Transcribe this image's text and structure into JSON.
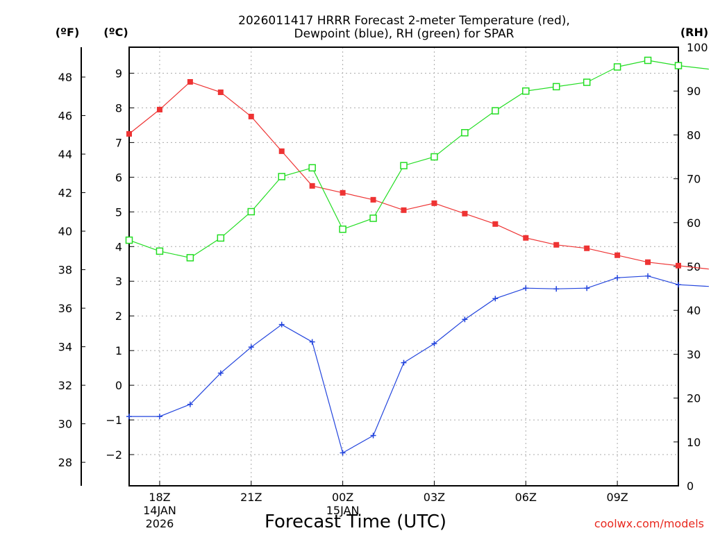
{
  "chart_data": {
    "type": "line",
    "title_line1": "2026011417 HRRR Forecast 2-meter Temperature (red),",
    "title_line2": "Dewpoint (blue), RH (green) for SPAR",
    "xlabel": "Forecast Time (UTC)",
    "credit": "coolwx.com/models",
    "units": {
      "f": "(ºF)",
      "c": "(ºC)",
      "rh": "(RH)"
    },
    "x_hours": [
      17,
      18,
      19,
      20,
      21,
      22,
      23,
      24,
      25,
      26,
      27,
      28,
      29,
      30,
      31,
      32,
      33,
      34,
      35,
      36
    ],
    "x_ticks": [
      {
        "hour": 18,
        "label": "18Z",
        "date": "14JAN",
        "year": "2026"
      },
      {
        "hour": 21,
        "label": "21Z",
        "date": "",
        "year": ""
      },
      {
        "hour": 24,
        "label": "00Z",
        "date": "15JAN",
        "year": ""
      },
      {
        "hour": 27,
        "label": "03Z",
        "date": "",
        "year": ""
      },
      {
        "hour": 30,
        "label": "06Z",
        "date": "",
        "year": ""
      },
      {
        "hour": 33,
        "label": "09Z",
        "date": "",
        "year": ""
      }
    ],
    "x_range": [
      17,
      35
    ],
    "y_celsius_range": [
      -2.9,
      9.75
    ],
    "y_celsius_ticks": [
      "-2",
      "-1",
      "0",
      "1",
      "2",
      "3",
      "4",
      "5",
      "6",
      "7",
      "8",
      "9"
    ],
    "y_fahrenheit_ticks": [
      "28",
      "30",
      "32",
      "34",
      "36",
      "38",
      "40",
      "42",
      "44",
      "46",
      "48"
    ],
    "y_rh_range": [
      0,
      100
    ],
    "y_rh_ticks": [
      "0",
      "10",
      "20",
      "30",
      "40",
      "50",
      "60",
      "70",
      "80",
      "90",
      "100"
    ],
    "series": [
      {
        "name": "2-meter Temperature",
        "unit": "C",
        "color": "#ee3333",
        "marker": "filled-square",
        "values": [
          7.25,
          7.95,
          8.75,
          8.45,
          7.75,
          6.75,
          5.75,
          5.55,
          5.35,
          5.05,
          5.25,
          4.95,
          4.65,
          4.25,
          4.05,
          3.95,
          3.75,
          3.55,
          3.45,
          3.35
        ]
      },
      {
        "name": "Dewpoint",
        "unit": "C",
        "color": "#2244dd",
        "marker": "plus",
        "values": [
          -0.9,
          -0.9,
          -0.55,
          0.35,
          1.1,
          1.75,
          1.25,
          -1.95,
          -1.45,
          0.65,
          1.2,
          1.9,
          2.5,
          2.8,
          2.78,
          2.8,
          3.1,
          3.15,
          2.9,
          2.85
        ]
      },
      {
        "name": "RH",
        "unit": "%",
        "color": "#22dd22",
        "marker": "open-square",
        "values": [
          56,
          53.5,
          52,
          56.5,
          62.5,
          70.5,
          72.5,
          58.5,
          61,
          73,
          75,
          80.5,
          85.5,
          90,
          91,
          92,
          95.5,
          97,
          95.8,
          95
        ]
      }
    ]
  }
}
